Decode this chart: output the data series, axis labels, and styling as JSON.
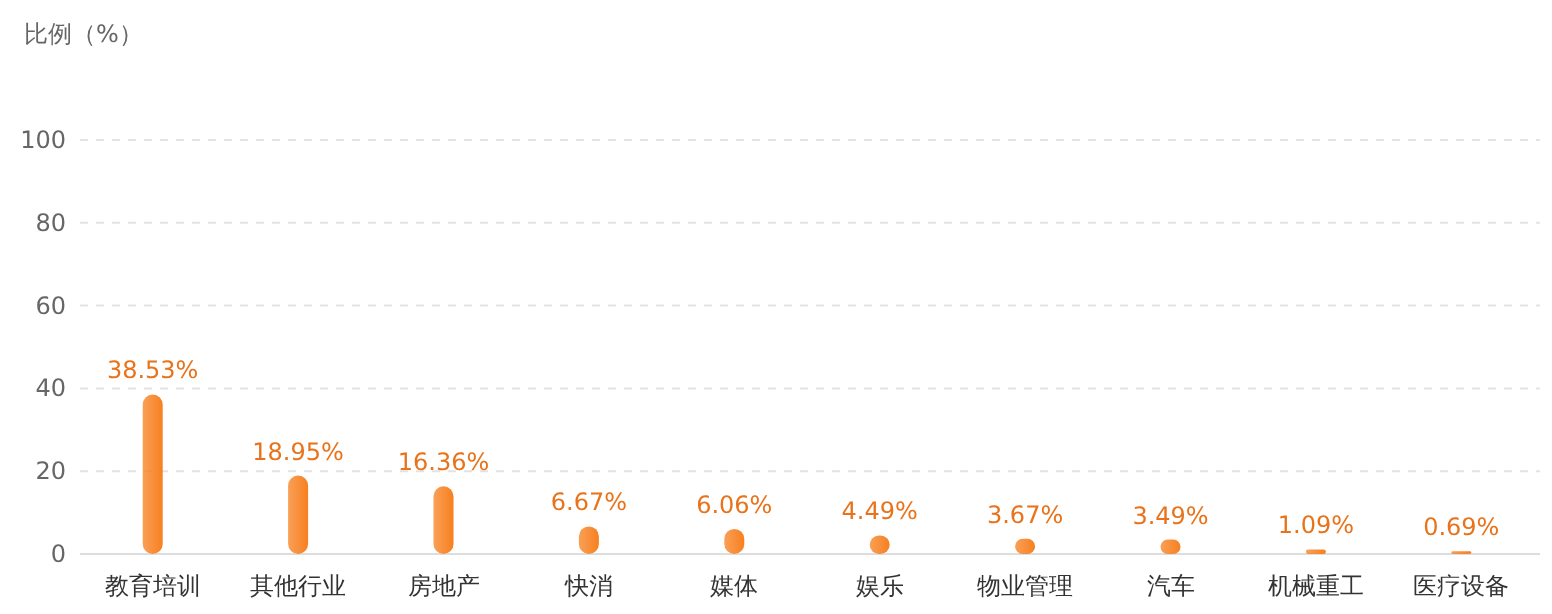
{
  "chart_data": {
    "type": "bar",
    "ylabel": "比例（%）",
    "categories": [
      "教育培训",
      "其他行业",
      "房地产",
      "快消",
      "媒体",
      "娱乐",
      "物业管理",
      "汽车",
      "机械重工",
      "医疗设备"
    ],
    "values": [
      38.53,
      18.95,
      16.36,
      6.67,
      6.06,
      4.49,
      3.67,
      3.49,
      1.09,
      0.69
    ],
    "value_labels": [
      "38.53%",
      "18.95%",
      "16.36%",
      "6.67%",
      "6.06%",
      "4.49%",
      "3.67%",
      "3.49%",
      "1.09%",
      "0.69%"
    ],
    "color": "#f7801f",
    "ylim": [
      0,
      100
    ],
    "yticks": [
      0,
      20,
      40,
      60,
      80,
      100
    ],
    "grid": "y"
  }
}
